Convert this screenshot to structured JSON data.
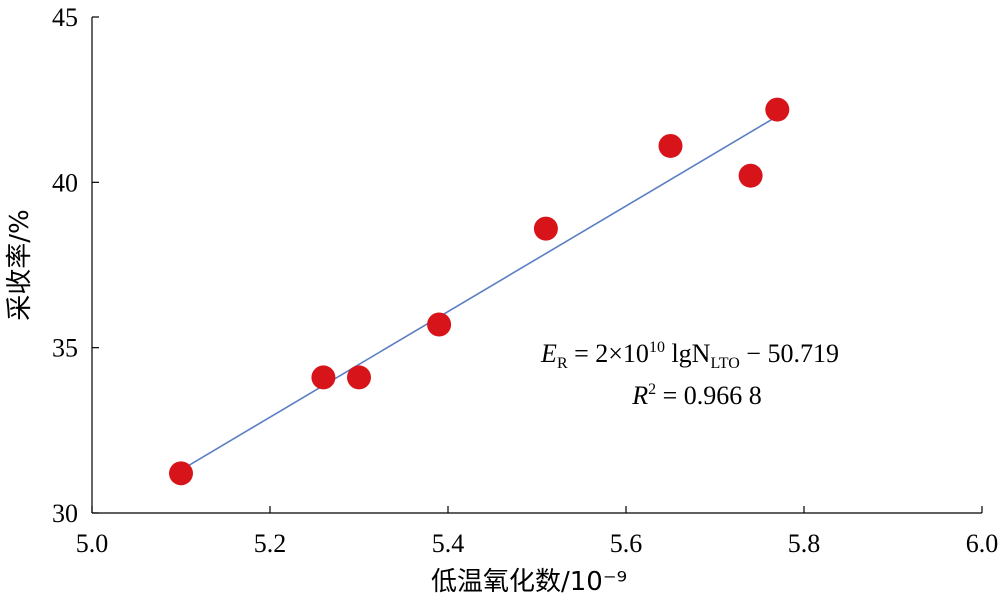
{
  "chart_data": {
    "type": "scatter",
    "xlabel": "低温氧化数/10⁻⁹",
    "ylabel": "采收率/%",
    "xlim": [
      5.0,
      6.0
    ],
    "ylim": [
      30,
      45
    ],
    "x_ticks": [
      "5.0",
      "5.2",
      "5.4",
      "5.6",
      "5.8",
      "6.0"
    ],
    "y_ticks": [
      "30",
      "35",
      "40",
      "45"
    ],
    "series": [
      {
        "points": [
          {
            "x": 5.1,
            "y": 31.2
          },
          {
            "x": 5.26,
            "y": 34.1
          },
          {
            "x": 5.3,
            "y": 34.1
          },
          {
            "x": 5.39,
            "y": 35.7
          },
          {
            "x": 5.51,
            "y": 38.6
          },
          {
            "x": 5.65,
            "y": 41.1
          },
          {
            "x": 5.74,
            "y": 40.2
          },
          {
            "x": 5.77,
            "y": 42.2
          }
        ],
        "color": "#d7141a"
      }
    ],
    "trendline": {
      "x_range": [
        5.1,
        5.77
      ],
      "y_range": [
        31.3,
        42.0
      ],
      "color": "#5b7fc4"
    },
    "annotation": {
      "line1": {
        "lhs": "E",
        "lhs_sub": "R",
        "eq": " = 2×10",
        "exp": "10",
        "lg": " lgN",
        "sub2": "LTO",
        "tail": " − 50.719"
      },
      "line2": {
        "lhs": "R",
        "exp": "2",
        "tail": " = 0.966 8"
      }
    },
    "grid": false,
    "legend": "none"
  }
}
